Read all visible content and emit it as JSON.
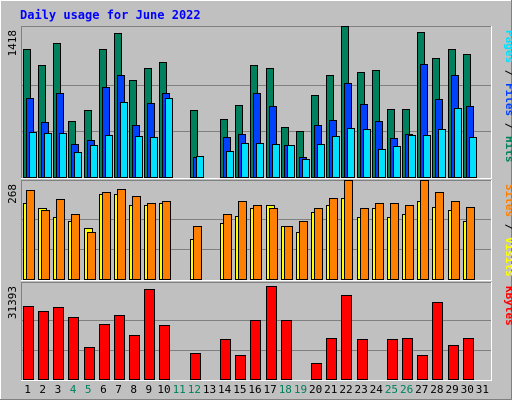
{
  "chart_data": {
    "type": "bar",
    "title": "Daily usage for June 2022",
    "categories": [
      "1",
      "2",
      "3",
      "4",
      "5",
      "6",
      "7",
      "8",
      "9",
      "10",
      "11",
      "12",
      "13",
      "14",
      "15",
      "16",
      "17",
      "18",
      "19",
      "20",
      "21",
      "22",
      "23",
      "24",
      "25",
      "26",
      "27",
      "28",
      "29",
      "30",
      "31"
    ],
    "weekend_days": [
      "4",
      "5",
      "11",
      "12",
      "18",
      "19",
      "25",
      "26"
    ],
    "colors": {
      "background": "#c0c0c0",
      "title": "#0000ff",
      "hits": "#00805c",
      "files": "#0040ff",
      "pages": "#00e0ff",
      "visits": "#ffff00",
      "sites": "#ff8000",
      "kbytes": "#ff0000",
      "weekend_label": "#00805c",
      "weekday_label": "#000000",
      "separator": "#000000"
    },
    "panels": [
      {
        "id": "hits-panel",
        "max_label": "1418",
        "ylim": [
          0,
          1418
        ],
        "side_label": [
          {
            "text": "Pages",
            "color": "#00e0ff"
          },
          {
            "text": " / ",
            "color": "#000000"
          },
          {
            "text": "Files",
            "color": "#0040ff"
          },
          {
            "text": " / ",
            "color": "#000000"
          },
          {
            "text": "Hits",
            "color": "#00805c"
          }
        ],
        "series": [
          {
            "name": "Hits",
            "color": "#00805c",
            "values": [
              1240,
              1080,
              1290,
              550,
              650,
              1240,
              1390,
              940,
              1050,
              1110,
              0,
              650,
              0,
              570,
              700,
              1080,
              1050,
              490,
              450,
              800,
              990,
              1460,
              1020,
              1030,
              660,
              660,
              1400,
              1150,
              1240,
              1190,
              0
            ]
          },
          {
            "name": "Files",
            "color": "#0040ff",
            "values": [
              770,
              540,
              810,
              330,
              360,
              870,
              990,
              510,
              720,
              810,
              0,
              200,
              0,
              390,
              420,
              810,
              690,
              320,
              200,
              510,
              560,
              910,
              710,
              550,
              380,
              420,
              1090,
              760,
              990,
              690,
              0
            ]
          },
          {
            "name": "Pages",
            "color": "#00e0ff",
            "values": [
              440,
              430,
              430,
              250,
              320,
              410,
              730,
              400,
              390,
              770,
              0,
              210,
              0,
              260,
              340,
              340,
              330,
              320,
              180,
              330,
              400,
              480,
              470,
              280,
              310,
              410,
              410,
              470,
              670,
              390,
              0
            ]
          }
        ]
      },
      {
        "id": "visits-panel",
        "max_label": "268",
        "ylim": [
          0,
          268
        ],
        "side_label": [
          {
            "text": "Sites",
            "color": "#ff8000"
          },
          {
            "text": " / ",
            "color": "#000000"
          },
          {
            "text": "Visits",
            "color": "#ffff00"
          }
        ],
        "series": [
          {
            "name": "Visits",
            "color": "#ffff00",
            "values": [
              215,
              200,
              175,
              165,
              145,
              240,
              240,
              210,
              210,
              215,
              0,
              115,
              0,
              160,
              180,
              200,
              210,
              150,
              135,
              190,
              210,
              230,
              175,
              200,
              175,
              185,
              220,
              205,
              195,
              165,
              0
            ]
          },
          {
            "name": "Sites",
            "color": "#ff8000",
            "values": [
              250,
              195,
              225,
              185,
              135,
              245,
              255,
              235,
              215,
              220,
              0,
              150,
              0,
              185,
              220,
              210,
              200,
              150,
              165,
              200,
              230,
              280,
              200,
              215,
              215,
              210,
              280,
              245,
              220,
              205,
              0
            ]
          }
        ]
      },
      {
        "id": "kbytes-panel",
        "max_label": "31393",
        "ylim": [
          0,
          31393
        ],
        "side_label": [
          {
            "text": "KBytes",
            "color": "#ff0000"
          }
        ],
        "series": [
          {
            "name": "KBytes",
            "color": "#ff0000",
            "values": [
              24600,
              23200,
              24300,
              20900,
              11100,
              18600,
              21700,
              14900,
              30400,
              18400,
              0,
              9100,
              0,
              13700,
              8500,
              20100,
              31400,
              20000,
              0,
              5800,
              13900,
              28500,
              13800,
              0,
              13700,
              13900,
              8400,
              26100,
              11700,
              14100,
              0
            ]
          }
        ]
      }
    ]
  }
}
